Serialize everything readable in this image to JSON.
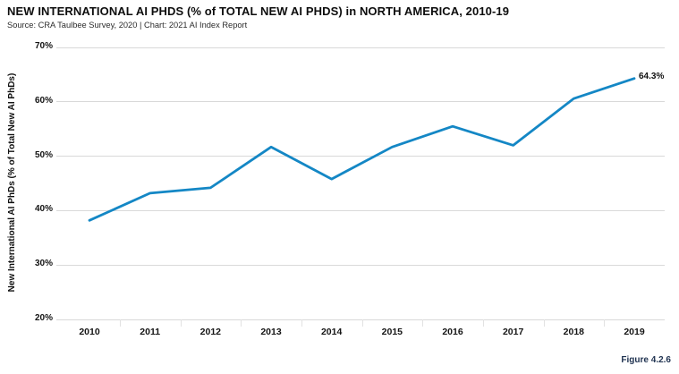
{
  "header": {
    "title": "NEW INTERNATIONAL AI PHDS (% of TOTAL NEW AI PHDS) in NORTH AMERICA, 2010-19",
    "source": "Source: CRA Taulbee Survey, 2020 | Chart: 2021 AI Index Report"
  },
  "figure_caption": "Figure 4.2.6",
  "colors": {
    "line": "#1487c5",
    "grid": "#d9d9d9",
    "axis_tick": "#e2e2e2",
    "caption": "#1f3250"
  },
  "chart_data": {
    "type": "line",
    "title": "NEW INTERNATIONAL AI PHDS (% of TOTAL NEW AI PHDS) in NORTH AMERICA, 2010-19",
    "x": [
      "2010",
      "2011",
      "2012",
      "2013",
      "2014",
      "2015",
      "2016",
      "2017",
      "2018",
      "2019"
    ],
    "values": [
      38.2,
      43.2,
      44.2,
      51.7,
      45.8,
      51.7,
      55.5,
      52.0,
      60.6,
      64.3
    ],
    "series_name": "New International AI PhDs (% of Total New AI PhDs)",
    "xlabel": "",
    "ylabel": "New International AI PhDs (% of Total New AI PhDs)",
    "ylim": [
      20,
      70
    ],
    "yticks": [
      20,
      30,
      40,
      50,
      60,
      70
    ],
    "ytick_labels": [
      "20%",
      "30%",
      "40%",
      "50%",
      "60%",
      "70%"
    ],
    "grid": "horizontal",
    "legend": "none",
    "end_label": "64.3%"
  }
}
